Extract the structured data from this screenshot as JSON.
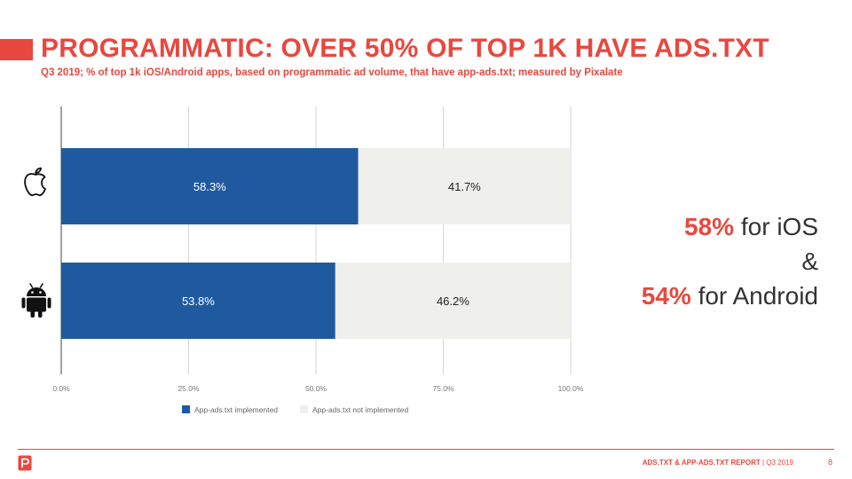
{
  "header": {
    "title": "PROGRAMMATIC: OVER 50% OF TOP 1K HAVE ADS.TXT",
    "subtitle": "Q3 2019; % of top 1k iOS/Android apps, based on programmatic ad volume, that have app-ads.txt; measured by Pixalate"
  },
  "chart_data": {
    "type": "bar",
    "orientation": "horizontal",
    "stacked": true,
    "categories": [
      "iOS",
      "Android"
    ],
    "category_icons": [
      "apple-icon",
      "android-icon"
    ],
    "series": [
      {
        "name": "App-ads.txt implemented",
        "values": [
          58.3,
          53.8
        ],
        "labels": [
          "58.3%",
          "53.8%"
        ],
        "color": "#1f5aa0"
      },
      {
        "name": "App-ads.txt not implemented",
        "values": [
          41.7,
          46.2
        ],
        "labels": [
          "41.7%",
          "46.2%"
        ],
        "color": "#efefec"
      }
    ],
    "xlim": [
      0,
      100
    ],
    "xticks": [
      0,
      25,
      50,
      75,
      100
    ],
    "xtick_labels": [
      "0.0%",
      "25.0%",
      "50.0%",
      "75.0%",
      "100.0%"
    ],
    "grid": true,
    "legend_position": "bottom"
  },
  "callout": {
    "ios_value": "58%",
    "ios_text": " for iOS",
    "amp": "&",
    "android_value": "54%",
    "android_text": " for Android"
  },
  "footer": {
    "report_title": "ADS.TXT & APP-ADS.TXT REPORT",
    "period": " | Q3 2019",
    "page_number": "8"
  },
  "colors": {
    "accent": "#e8483f",
    "implemented": "#1f5aa0",
    "not_implemented": "#efefec"
  }
}
